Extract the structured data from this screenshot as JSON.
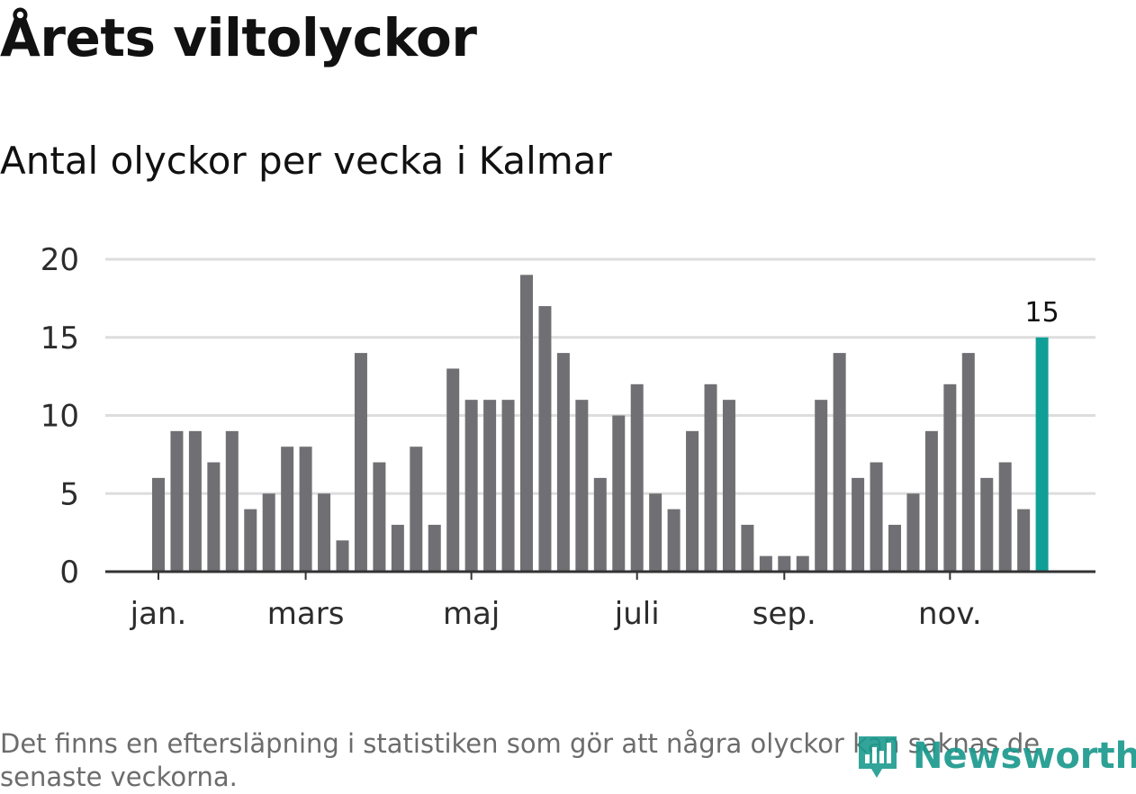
{
  "header": {
    "title": "Årets viltolyckor",
    "subtitle": "Antal olyckor per vecka i Kalmar"
  },
  "footer": {
    "note": "Det finns en eftersläpning i statistiken som gör att några olyckor kan saknas de senaste veckorna.",
    "logo_text": "Newsworthy"
  },
  "colors": {
    "bar": "#707074",
    "highlight": "#109f97",
    "gridline": "#dddddd",
    "axis": "#333333",
    "logo": "#1c9a8e"
  },
  "icons": {
    "logo": "newsworthy-logo-icon"
  },
  "chart_data": {
    "type": "bar",
    "title": "Antal olyckor per vecka i Kalmar",
    "xlabel": "",
    "ylabel": "",
    "ylim": [
      0,
      20
    ],
    "yticks": [
      0,
      5,
      10,
      15,
      20
    ],
    "grid": true,
    "weeks": [
      1,
      2,
      3,
      4,
      5,
      6,
      7,
      8,
      9,
      10,
      11,
      12,
      13,
      14,
      15,
      16,
      17,
      18,
      19,
      20,
      21,
      22,
      23,
      24,
      25,
      26,
      27,
      28,
      29,
      30,
      31,
      32,
      33,
      34,
      35,
      36,
      37,
      38,
      39,
      40,
      41,
      42,
      43,
      44,
      45,
      46,
      47,
      48,
      49
    ],
    "values": [
      6,
      9,
      9,
      7,
      9,
      4,
      5,
      8,
      8,
      5,
      2,
      14,
      7,
      3,
      8,
      3,
      13,
      11,
      11,
      11,
      19,
      17,
      14,
      11,
      6,
      10,
      12,
      5,
      4,
      9,
      12,
      11,
      3,
      1,
      1,
      1,
      11,
      14,
      6,
      7,
      3,
      5,
      9,
      12,
      14,
      6,
      7,
      4,
      15
    ],
    "highlight": {
      "week": 49,
      "value": 15,
      "label": "15"
    },
    "month_ticks": [
      {
        "label": "jan.",
        "week": 1
      },
      {
        "label": "mars",
        "week": 9
      },
      {
        "label": "maj",
        "week": 18
      },
      {
        "label": "juli",
        "week": 27
      },
      {
        "label": "sep.",
        "week": 35
      },
      {
        "label": "nov.",
        "week": 44
      }
    ]
  }
}
